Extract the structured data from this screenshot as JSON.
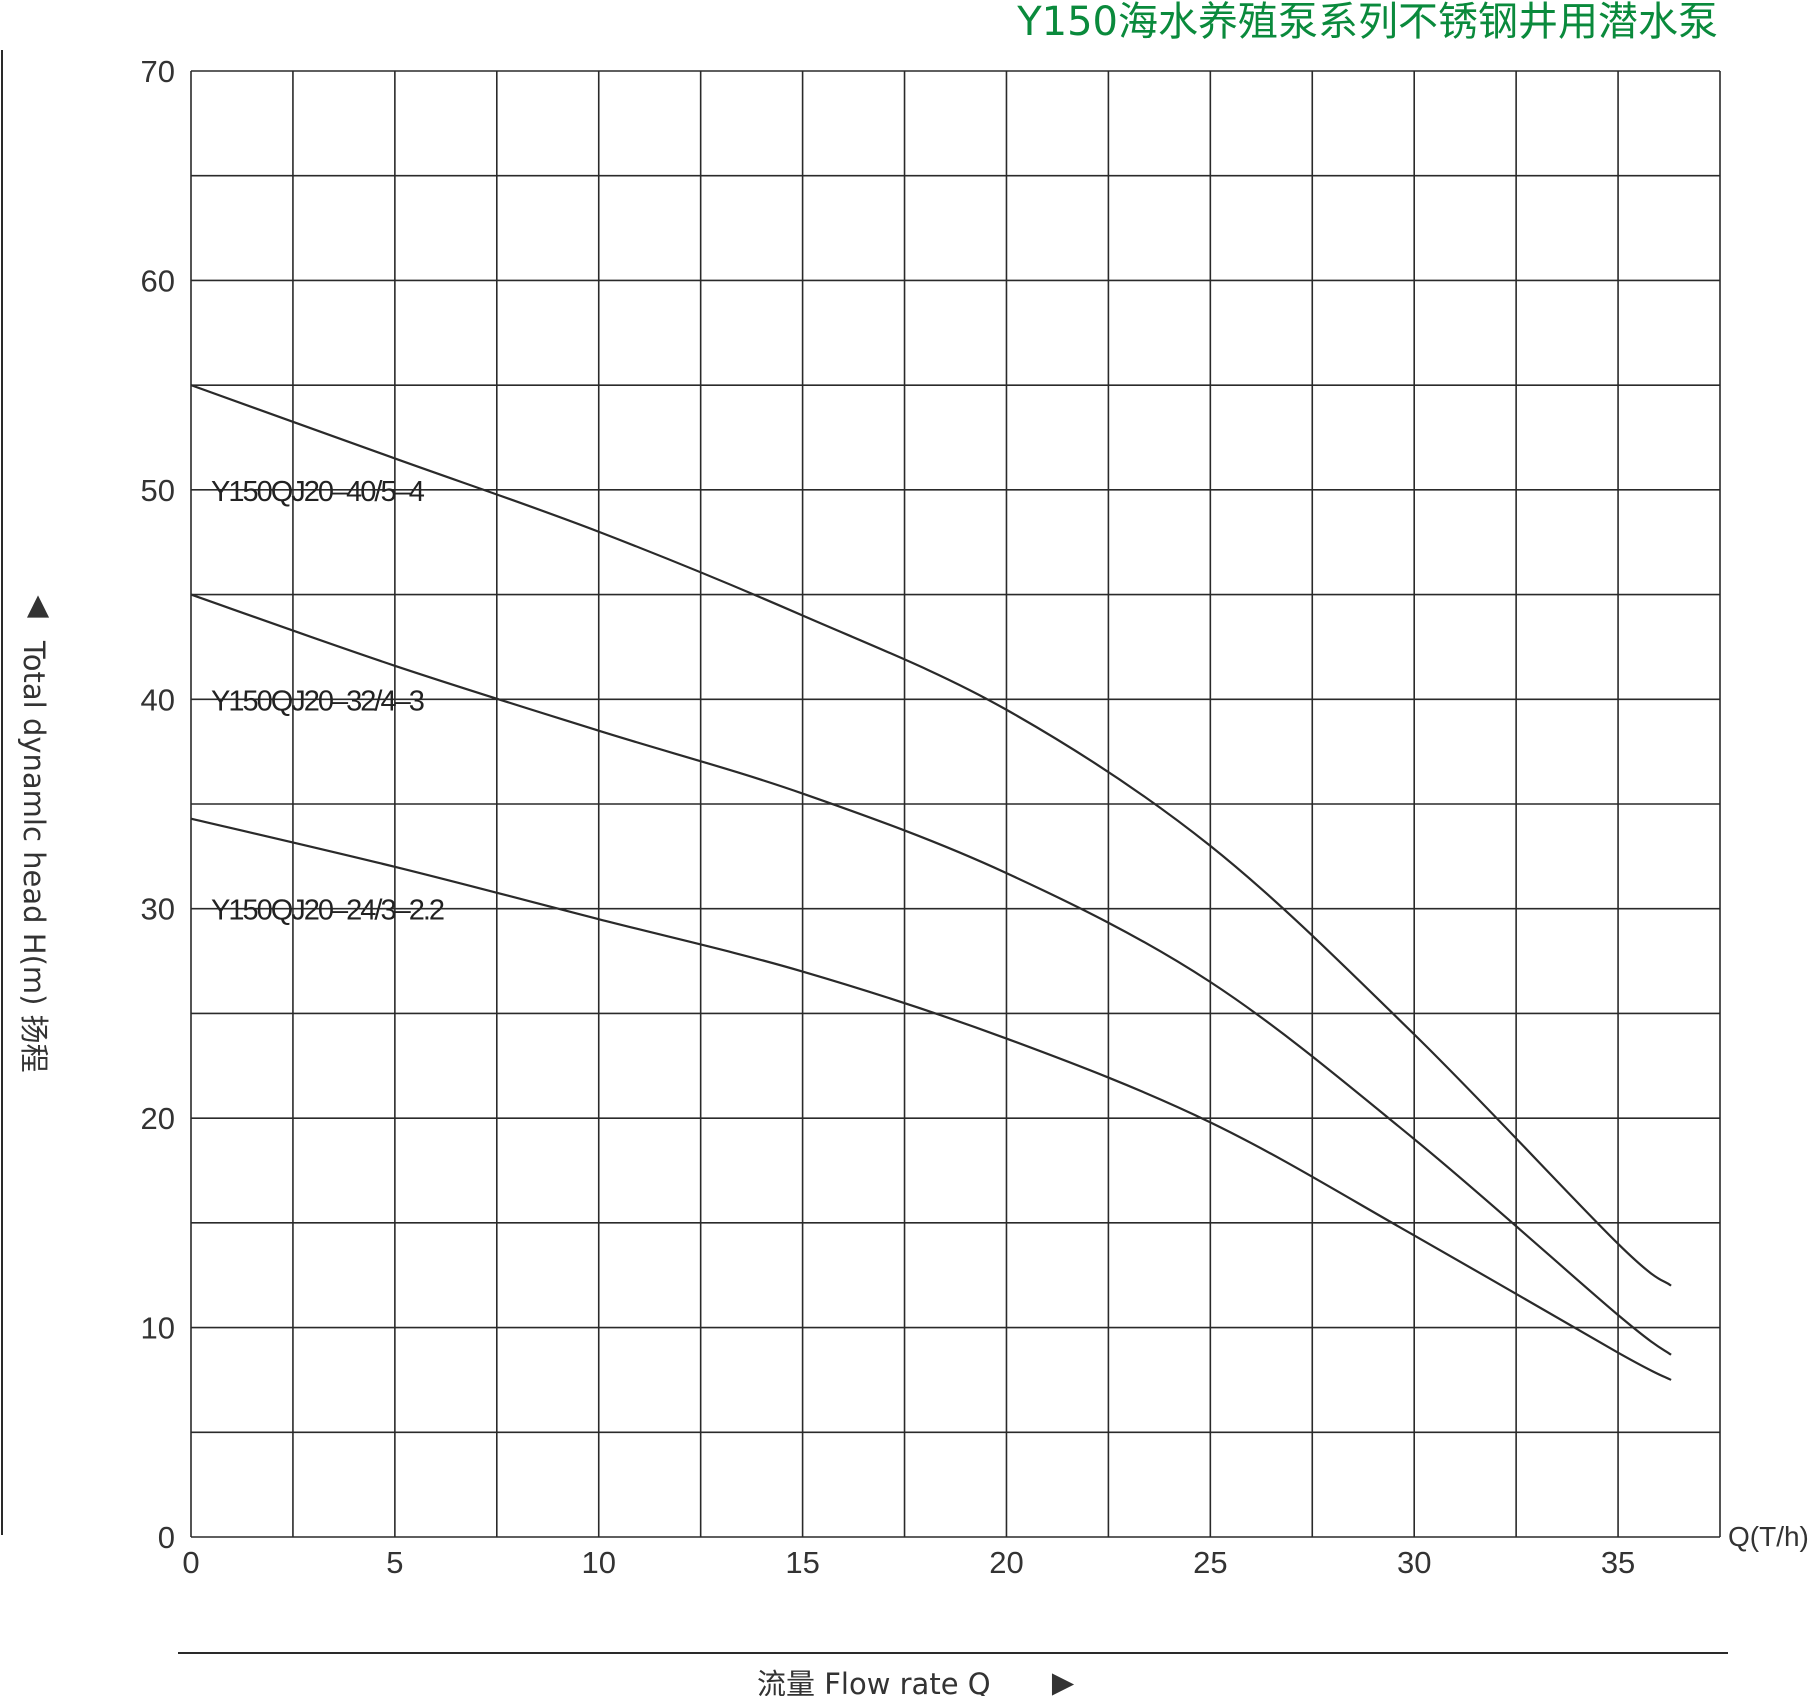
{
  "chart_data": {
    "type": "line",
    "title": "Y150海水养殖泵系列不锈钢井用潜水泵",
    "xlabel": "流量  Flow rate Q",
    "xunit": "Q(T/h)",
    "ylabel": "Total dynamlc head H(m) 扬程",
    "xlim": [
      0,
      37.5
    ],
    "ylim": [
      0,
      70
    ],
    "xticks": [
      0,
      5,
      10,
      15,
      20,
      25,
      30,
      35
    ],
    "yticks": [
      0,
      10,
      20,
      30,
      40,
      50,
      60,
      70
    ],
    "grid": true,
    "series": [
      {
        "name": "Y150QJ20–40/5–4",
        "x": [
          0,
          5,
          10,
          15,
          20,
          25,
          30,
          35,
          36.3
        ],
        "y": [
          55,
          51.5,
          48,
          44,
          39.5,
          33,
          24,
          14,
          12
        ]
      },
      {
        "name": "Y150QJ20–32/4–3",
        "x": [
          0,
          5,
          10,
          15,
          20,
          25,
          30,
          35,
          36.3
        ],
        "y": [
          45,
          41.6,
          38.5,
          35.5,
          31.7,
          26.5,
          19,
          10.6,
          8.7
        ]
      },
      {
        "name": "Y150QJ20–24/3–2.2",
        "x": [
          0,
          5,
          10,
          15,
          20,
          25,
          30,
          35,
          36.3
        ],
        "y": [
          34.3,
          32,
          29.5,
          27,
          23.8,
          19.8,
          14.4,
          8.8,
          7.5
        ]
      }
    ]
  }
}
